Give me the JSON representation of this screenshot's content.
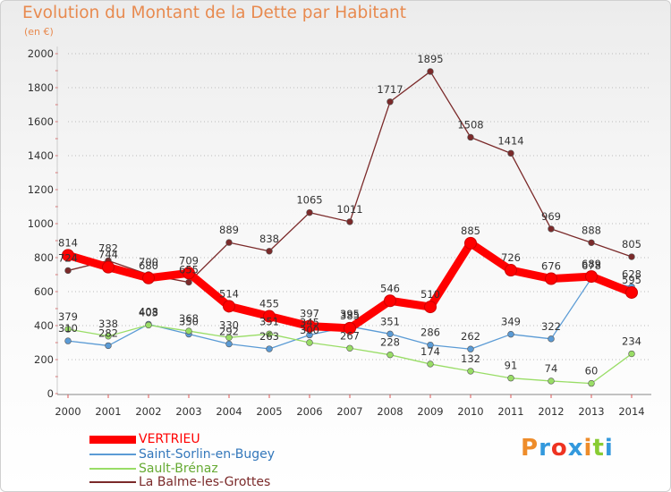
{
  "header": {
    "title": "Evolution du Montant de la Dette par Habitant",
    "subtitle": "(en €)"
  },
  "colors": {
    "title": "#e88a4f",
    "grid": "#bbbbbb",
    "axis_text": "#333333"
  },
  "chart_data": {
    "type": "line",
    "title": "Evolution du Montant de la Dette par Habitant",
    "subtitle": "(en €)",
    "xlabel": "",
    "ylabel": "",
    "x": [
      "2000",
      "2001",
      "2002",
      "2003",
      "2004",
      "2005",
      "2006",
      "2007",
      "2008",
      "2009",
      "2010",
      "2011",
      "2012",
      "2013",
      "2014"
    ],
    "ylim": [
      0,
      2000
    ],
    "yticks": [
      "0",
      "200",
      "400",
      "600",
      "800",
      "1000",
      "1200",
      "1400",
      "1600",
      "1800",
      "2000"
    ],
    "grid": "horizontal",
    "legend_position": "bottom-left",
    "series": [
      {
        "name": "VERTRIEU",
        "color": "#ff0000",
        "values": [
          814,
          744,
          680,
          709,
          514,
          455,
          397,
          385,
          546,
          510,
          885,
          726,
          676,
          689,
          595
        ],
        "labels": [
          "814",
          "744",
          "680",
          "709",
          "514",
          "455",
          "397",
          "385",
          "546",
          "510",
          "885",
          "726",
          "676",
          "689",
          "595"
        ]
      },
      {
        "name": "Saint-Sorlin-en-Bugey",
        "color": "#5b9bd5",
        "values": [
          310,
          282,
          408,
          350,
          292,
          263,
          345,
          395,
          351,
          286,
          262,
          349,
          322,
          678,
          628
        ],
        "labels": [
          "310",
          "282",
          "408",
          "350",
          "292",
          "263",
          "345",
          "395",
          "351",
          "286",
          "262",
          "349",
          "322",
          "678",
          "628"
        ]
      },
      {
        "name": "Sault-Brénaz",
        "color": "#99dd66",
        "values": [
          379,
          338,
          403,
          368,
          330,
          351,
          300,
          267,
          228,
          174,
          132,
          91,
          74,
          60,
          234
        ],
        "labels": [
          "379",
          "338",
          "403",
          "368",
          "330",
          "351",
          "300",
          "267",
          "228",
          "174",
          "132",
          "91",
          "74",
          "60",
          "234"
        ]
      },
      {
        "name": "La Balme-les-Grottes",
        "color": "#7b2a2a",
        "values": [
          724,
          782,
          700,
          655,
          889,
          838,
          1065,
          1011,
          1717,
          1895,
          1508,
          1414,
          969,
          888,
          805
        ],
        "labels": [
          "724",
          "782",
          "700",
          "655",
          "889",
          "838",
          "1065",
          "1011",
          "1717",
          "1895",
          "1508",
          "1414",
          "969",
          "888",
          "805"
        ]
      }
    ]
  },
  "logo": {
    "letters": [
      "P",
      "r",
      "o",
      "x",
      "i",
      "t",
      "i"
    ],
    "colors": [
      "#ee8c2a",
      "#3399dd",
      "#ee3322",
      "#3399dd",
      "#ee8c2a",
      "#88cc33",
      "#3399dd"
    ]
  }
}
